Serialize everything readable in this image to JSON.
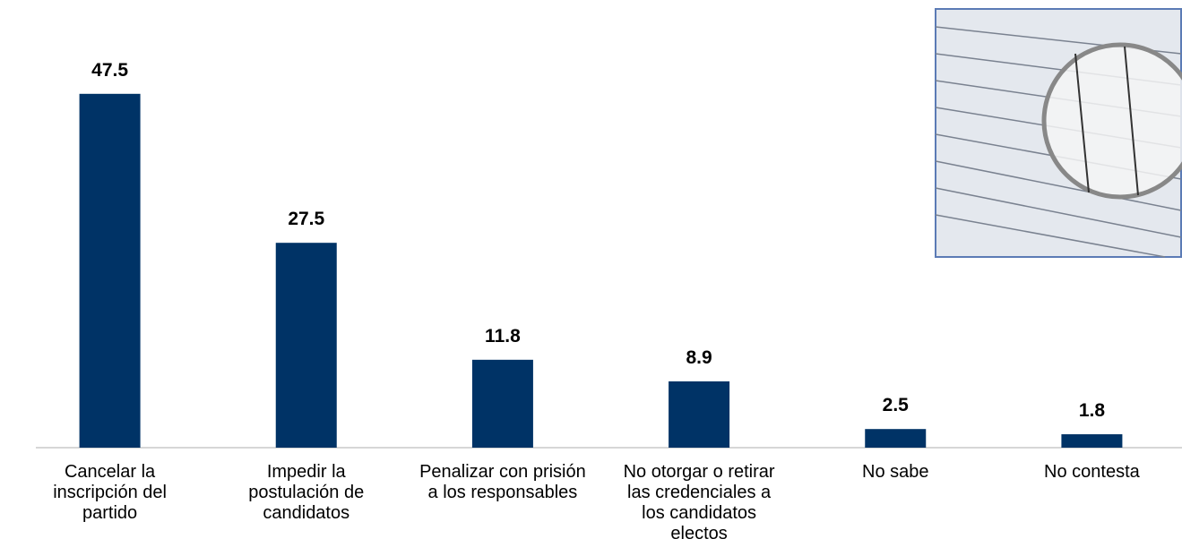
{
  "chart_data": {
    "type": "bar",
    "categories": [
      "Cancelar la inscripción del partido",
      "Impedir la postulación de candidatos",
      "Penalizar con prisión a los responsables",
      "No otorgar o retirar las credenciales a los candidatos electos",
      "No sabe",
      "No contesta"
    ],
    "values": [
      47.5,
      27.5,
      11.8,
      8.9,
      2.5,
      1.8
    ],
    "color": "#003366",
    "ylim": [
      0,
      50
    ]
  }
}
